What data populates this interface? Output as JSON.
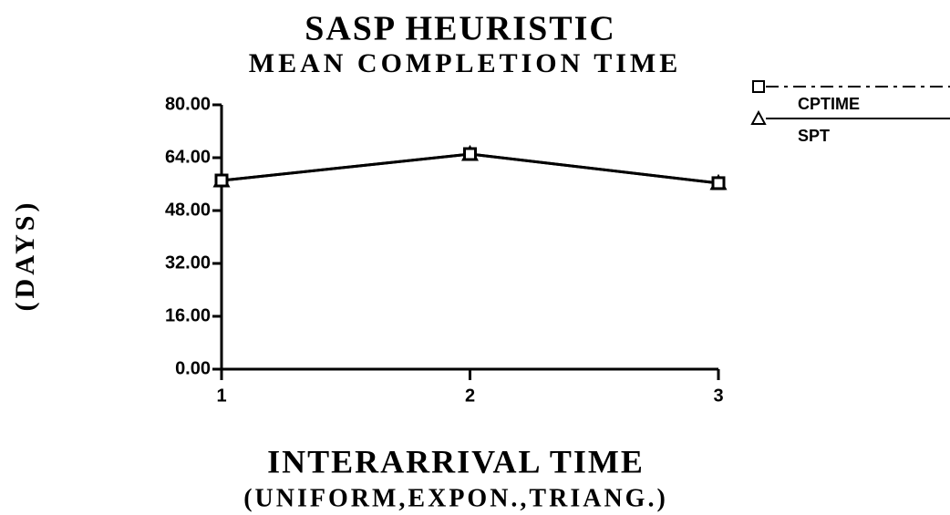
{
  "chart_data": {
    "type": "line",
    "title": "SASP HEURISTIC",
    "subtitle": "MEAN COMPLETION TIME",
    "y_label": "(DAYS)",
    "x_label": "INTERARRIVAL TIME",
    "x_label_2": "(UNIFORM,EXPON.,TRIANG.)",
    "x": [
      1,
      2,
      3
    ],
    "xlim": [
      1,
      3
    ],
    "xticks": [
      1,
      2,
      3
    ],
    "ylim": [
      0,
      80
    ],
    "yticks": [
      {
        "value": 0,
        "label": "0.00"
      },
      {
        "value": 16,
        "label": "16.00"
      },
      {
        "value": 32,
        "label": "32.00"
      },
      {
        "value": 48,
        "label": "48.00"
      },
      {
        "value": 64,
        "label": "64.00"
      },
      {
        "value": 80,
        "label": "80.00"
      }
    ],
    "series": [
      {
        "name": "CPTIME",
        "color": "#000000",
        "marker": "square",
        "values": [
          57.1,
          65.1,
          56.3
        ]
      },
      {
        "name": "SPT",
        "color": "#000000",
        "marker": "triangle",
        "values": [
          57.1,
          65.1,
          56.3
        ]
      }
    ]
  }
}
